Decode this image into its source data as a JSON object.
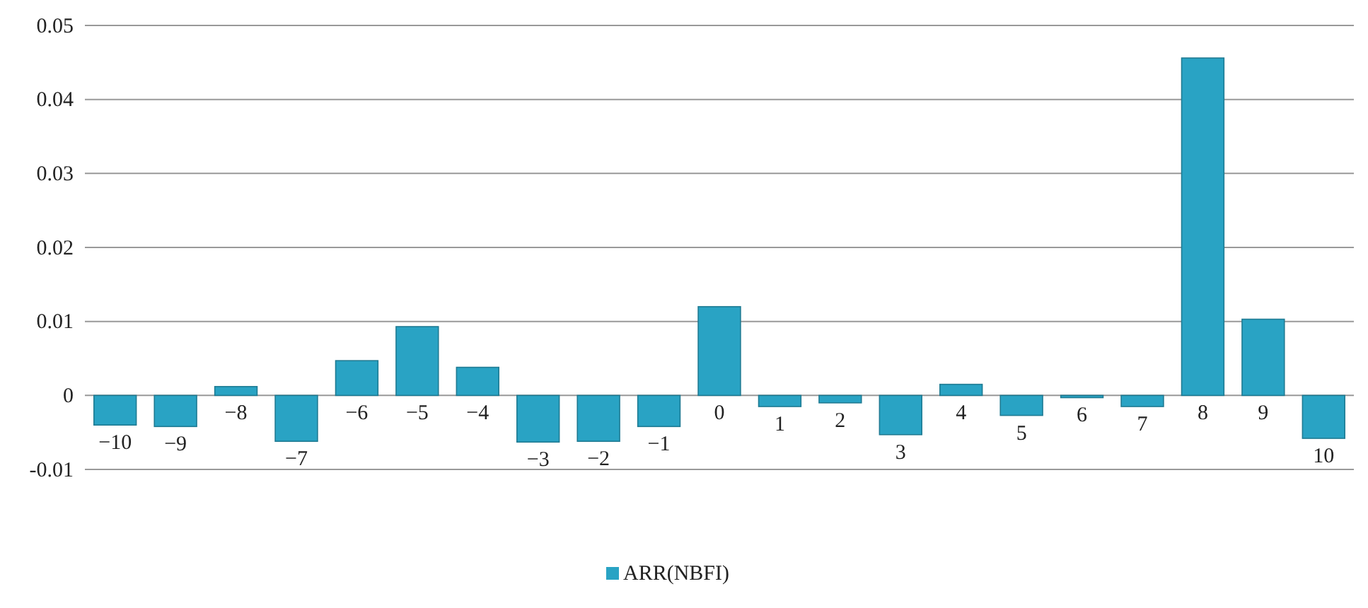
{
  "chart_data": {
    "type": "bar",
    "categories": [
      "−10",
      "−9",
      "−8",
      "−7",
      "−6",
      "−5",
      "−4",
      "−3",
      "−2",
      "−1",
      "0",
      "1",
      "2",
      "3",
      "4",
      "5",
      "6",
      "7",
      "8",
      "9",
      "10"
    ],
    "series": [
      {
        "name": "ARR(NBFI)",
        "color": "#29a3c4",
        "values": [
          -0.004,
          -0.0042,
          0.0012,
          -0.0062,
          0.0047,
          0.0093,
          0.0038,
          -0.0063,
          -0.0062,
          -0.0042,
          0.012,
          -0.0015,
          -0.001,
          -0.0053,
          0.0015,
          -0.0027,
          -0.0003,
          -0.0015,
          0.0456,
          0.0103,
          -0.0058
        ]
      }
    ],
    "ylim": [
      -0.01,
      0.05
    ],
    "yticks": [
      {
        "value": -0.01,
        "label": "-0.01"
      },
      0,
      0.01,
      0.02,
      0.03,
      0.04,
      0.05
    ],
    "grid": "y",
    "legend": "bottom"
  }
}
